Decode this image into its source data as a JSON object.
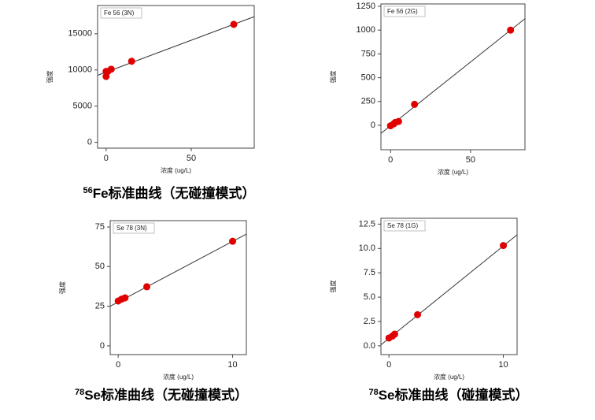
{
  "chart_data": [
    {
      "type": "scatter",
      "title": "Fe 56 (3N)",
      "x_label": "浓度 (ug/L)",
      "y_label": "强度",
      "isotope": "56",
      "caption": "Fe标准曲线（无碰撞模式）",
      "color": "#e00000",
      "x": [
        0,
        0,
        1,
        3,
        15,
        75
      ],
      "values": [
        9100,
        9800,
        9800,
        10100,
        11200,
        16300
      ],
      "fit_line": {
        "x": [
          -5,
          87
        ],
        "y": [
          9260,
          17360
        ]
      },
      "xlim": [
        -5,
        87
      ],
      "ylim": [
        -800,
        18900
      ],
      "xticks": [
        0,
        50
      ],
      "yticks": [
        0,
        5000,
        10000,
        15000
      ]
    },
    {
      "type": "scatter",
      "title": "Fe 56 (2G)",
      "x_label": "浓度 (ug/L)",
      "y_label": "强度",
      "color": "#e00000",
      "x": [
        0,
        2,
        3,
        5,
        15,
        75
      ],
      "values": [
        -5,
        15,
        30,
        40,
        220,
        1000
      ],
      "fit_line": {
        "x": [
          -6,
          84
        ],
        "y": [
          -85,
          1120
        ]
      },
      "xlim": [
        -6,
        84
      ],
      "ylim": [
        -257,
        1275
      ],
      "xticks": [
        0,
        50
      ],
      "yticks": [
        0,
        250,
        500,
        750,
        1000,
        1250
      ]
    },
    {
      "type": "scatter",
      "title": "Se 78 (3N)",
      "x_label": "浓度 (ug/L)",
      "y_label": "强度",
      "isotope": "78",
      "caption": "Se标准曲线（无碰撞模式）",
      "color": "#e00000",
      "x": [
        0,
        0.3,
        0.6,
        2.5,
        10
      ],
      "values": [
        28.3,
        29.5,
        30.3,
        37.3,
        66
      ],
      "fit_line": {
        "x": [
          -0.7,
          11.2
        ],
        "y": [
          25,
          70.5
        ]
      },
      "xlim": [
        -0.7,
        11.2
      ],
      "ylim": [
        -5.5,
        79
      ],
      "xticks": [
        0,
        10
      ],
      "yticks": [
        0,
        25,
        50,
        75
      ]
    },
    {
      "type": "scatter",
      "title": "Se 78 (1G)",
      "x_label": "浓度 (ug/L)",
      "y_label": "强度",
      "isotope": "78",
      "caption": "Se标准曲线（碰撞模式）",
      "color": "#e00000",
      "x": [
        0,
        0.3,
        0.5,
        2.5,
        10
      ],
      "values": [
        0.8,
        1.0,
        1.2,
        3.2,
        10.3
      ],
      "fit_line": {
        "x": [
          -0.7,
          11.2
        ],
        "y": [
          0.1,
          11.4
        ]
      },
      "xlim": [
        -0.7,
        11.2
      ],
      "ylim": [
        -0.9,
        13.1
      ],
      "xticks": [
        0,
        10
      ],
      "yticks": [
        {
          "value": 0,
          "label": "0.0"
        },
        2.5,
        {
          "value": 5,
          "label": "5.0"
        },
        7.5,
        {
          "value": 10,
          "label": "10.0"
        },
        12.5
      ]
    }
  ]
}
